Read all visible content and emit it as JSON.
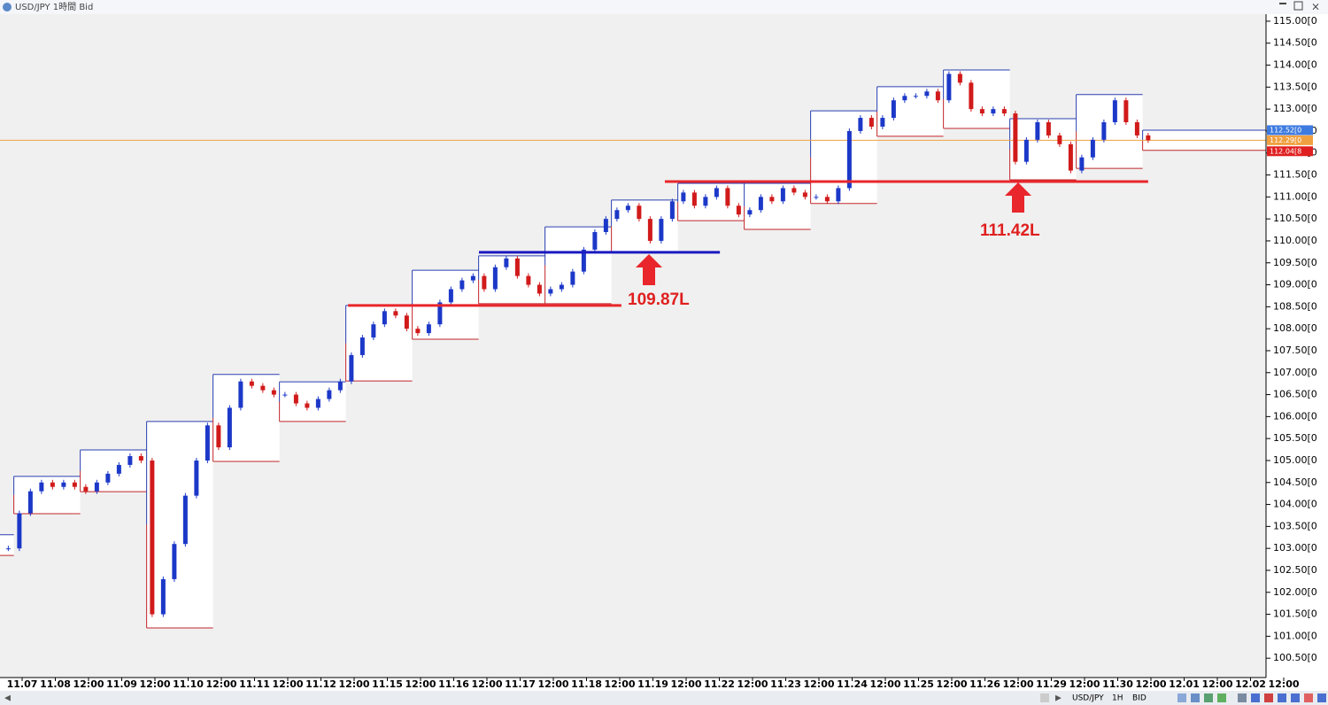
{
  "window": {
    "title": "USD/JPY 1時間 Bid",
    "toolbar": [
      "USD/JPY",
      "1H",
      "BID"
    ]
  },
  "chart_data": {
    "type": "candlestick",
    "xlim": [
      -8,
      449.6
    ],
    "ylim": [
      100.06,
      115.16
    ],
    "xticks": [
      {
        "value": 0,
        "label": "11.07"
      },
      {
        "value": 12,
        "label": "11.08"
      },
      {
        "value": 24,
        "label": "12:00"
      },
      {
        "value": 36,
        "label": "11.09"
      },
      {
        "value": 48,
        "label": "12:00"
      },
      {
        "value": 60,
        "label": "11.10"
      },
      {
        "value": 72,
        "label": "12:00"
      },
      {
        "value": 84,
        "label": "11.11"
      },
      {
        "value": 96,
        "label": "12:00"
      },
      {
        "value": 108,
        "label": "11.12"
      },
      {
        "value": 120,
        "label": "12:00"
      },
      {
        "value": 132,
        "label": "11.15"
      },
      {
        "value": 144,
        "label": "12:00"
      },
      {
        "value": 156,
        "label": "11.16"
      },
      {
        "value": 168,
        "label": "12:00"
      },
      {
        "value": 180,
        "label": "11.17"
      },
      {
        "value": 192,
        "label": "12:00"
      },
      {
        "value": 204,
        "label": "11.18"
      },
      {
        "value": 216,
        "label": "12:00"
      },
      {
        "value": 228,
        "label": "11.19"
      },
      {
        "value": 240,
        "label": "12:00"
      },
      {
        "value": 252,
        "label": "11.22"
      },
      {
        "value": 264,
        "label": "12:00"
      },
      {
        "value": 276,
        "label": "11.23"
      },
      {
        "value": 288,
        "label": "12:00"
      },
      {
        "value": 300,
        "label": "11.24"
      },
      {
        "value": 312,
        "label": "12:00"
      },
      {
        "value": 324,
        "label": "11.25"
      },
      {
        "value": 336,
        "label": "12:00"
      },
      {
        "value": 348,
        "label": "11.26"
      },
      {
        "value": 360,
        "label": "12:00"
      },
      {
        "value": 372,
        "label": "11.29"
      },
      {
        "value": 384,
        "label": "12:00"
      },
      {
        "value": 396,
        "label": "11.30"
      },
      {
        "value": 408,
        "label": "12:00"
      },
      {
        "value": 420,
        "label": "12.01"
      },
      {
        "value": 432,
        "label": "12:00"
      },
      {
        "value": 444,
        "label": "12.02"
      },
      {
        "value": 456,
        "label": "12:00"
      }
    ],
    "yticks": [
      {
        "value": 100.5,
        "label": "100.50[0"
      },
      {
        "value": 101,
        "label": "101.00[0"
      },
      {
        "value": 101.5,
        "label": "101.50[0"
      },
      {
        "value": 102,
        "label": "102.00[0"
      },
      {
        "value": 102.5,
        "label": "102.50[0"
      },
      {
        "value": 103,
        "label": "103.00[0"
      },
      {
        "value": 103.5,
        "label": "103.50[0"
      },
      {
        "value": 104,
        "label": "104.00[0"
      },
      {
        "value": 104.5,
        "label": "104.50[0"
      },
      {
        "value": 105,
        "label": "105.00[0"
      },
      {
        "value": 105.5,
        "label": "105.50[0"
      },
      {
        "value": 106,
        "label": "106.00[0"
      },
      {
        "value": 106.5,
        "label": "106.50[0"
      },
      {
        "value": 107,
        "label": "107.00[0"
      },
      {
        "value": 107.5,
        "label": "107.50[0"
      },
      {
        "value": 108,
        "label": "108.00[0"
      },
      {
        "value": 108.5,
        "label": "108.50[0"
      },
      {
        "value": 109,
        "label": "109.00[0"
      },
      {
        "value": 109.5,
        "label": "109.50[0"
      },
      {
        "value": 110,
        "label": "110.00[0"
      },
      {
        "value": 110.5,
        "label": "110.50[0"
      },
      {
        "value": 111,
        "label": "111.00[0"
      },
      {
        "value": 111.5,
        "label": "111.50[0"
      },
      {
        "value": 112,
        "label": "112.00[0"
      },
      {
        "value": 112.5,
        "label": "112.50[0"
      },
      {
        "value": 113,
        "label": "113.00[0"
      },
      {
        "value": 113.5,
        "label": "113.50[0"
      },
      {
        "value": 114,
        "label": "114.00[0"
      },
      {
        "value": 114.5,
        "label": "114.50[0"
      },
      {
        "value": 115,
        "label": "115.00[0"
      }
    ],
    "up_color": "#1c38c8",
    "down_color": "#d11a1a",
    "x": [
      -5,
      -1,
      3,
      7,
      11,
      15,
      19,
      23,
      27,
      31,
      35,
      39,
      43,
      47,
      51,
      55,
      59,
      63,
      67,
      71,
      75,
      79,
      83,
      87,
      91,
      95,
      99,
      103,
      107,
      111,
      115,
      119,
      123,
      127,
      131,
      135,
      139,
      143,
      147,
      151,
      155,
      159,
      163,
      167,
      171,
      175,
      179,
      183,
      187,
      191,
      195,
      199,
      203,
      207,
      211,
      215,
      219,
      223,
      227,
      231,
      235,
      239,
      243,
      247,
      251,
      255,
      259,
      263,
      267,
      271,
      275,
      279,
      283,
      287,
      291,
      295,
      299,
      303,
      307,
      311,
      315,
      319,
      323,
      327,
      331,
      335,
      339,
      343,
      347,
      351,
      355,
      359,
      363,
      367,
      371,
      375,
      379,
      383,
      387,
      391,
      395,
      399,
      403,
      407
    ],
    "values": [
      103.0,
      103.8,
      104.3,
      104.5,
      104.4,
      104.5,
      104.4,
      104.3,
      104.5,
      104.7,
      104.9,
      105.1,
      105.0,
      101.5,
      102.3,
      103.1,
      104.2,
      105.0,
      105.8,
      105.3,
      106.2,
      106.8,
      106.7,
      106.6,
      106.5,
      106.5,
      106.3,
      106.2,
      106.4,
      106.6,
      106.8,
      107.4,
      107.8,
      108.1,
      108.4,
      108.3,
      108.0,
      107.9,
      108.1,
      108.6,
      108.9,
      109.1,
      109.2,
      108.9,
      109.4,
      109.6,
      109.2,
      109.0,
      108.8,
      108.9,
      109.0,
      109.3,
      109.8,
      110.2,
      110.5,
      110.7,
      110.8,
      110.5,
      110.0,
      110.5,
      110.9,
      111.1,
      110.8,
      111.0,
      111.2,
      110.8,
      110.6,
      110.7,
      111.0,
      110.9,
      111.2,
      111.1,
      111.0,
      111.0,
      110.9,
      111.2,
      112.5,
      112.8,
      112.6,
      112.8,
      113.2,
      113.3,
      113.3,
      113.4,
      113.2,
      113.8,
      113.6,
      113.0,
      112.9,
      113.0,
      112.9,
      111.8,
      112.3,
      112.7,
      112.4,
      112.2,
      111.6,
      111.9,
      112.3,
      112.7,
      113.2,
      112.7,
      112.4,
      112.29
    ],
    "day_ranges": {
      "start": [
        -27,
        -3,
        21,
        45,
        69,
        93,
        117,
        141,
        165,
        189,
        213,
        237,
        261,
        285,
        309,
        333,
        357,
        381,
        405
      ],
      "high": [
        103.31,
        104.64,
        105.24,
        105.89,
        106.96,
        106.79,
        108.53,
        109.33,
        109.66,
        110.32,
        110.93,
        111.31,
        111.31,
        112.96,
        113.51,
        113.89,
        112.78,
        113.33,
        112.52
      ],
      "low": [
        102.84,
        103.79,
        104.29,
        101.19,
        104.98,
        105.89,
        106.81,
        107.76,
        108.57,
        108.57,
        109.74,
        110.46,
        110.26,
        110.85,
        112.38,
        112.56,
        111.39,
        111.65,
        112.06
      ],
      "high_color": "#2a3fb0",
      "low_color": "#c0262b"
    },
    "levels": [
      {
        "value": 108.53,
        "x0": 117.8,
        "x1": 216.6,
        "color": "#e8262b"
      },
      {
        "value": 109.74,
        "x0": 165.1,
        "x1": 252.2,
        "color": "#1a1ac0"
      },
      {
        "value": 111.35,
        "x0": 232.3,
        "x1": 407,
        "color": "#e8262b"
      }
    ],
    "annotations": [
      "109.87L",
      "111.42L"
    ],
    "price_tags": [
      {
        "value": 112.52,
        "label": "112.52[0",
        "color": "#3d7be0",
        "line": false
      },
      {
        "value": 112.29,
        "label": "112.29[0",
        "color": "#f0a040",
        "line": true
      },
      {
        "value": 112.04,
        "label": "112.04[8",
        "color": "#e02020",
        "line": false
      }
    ]
  }
}
